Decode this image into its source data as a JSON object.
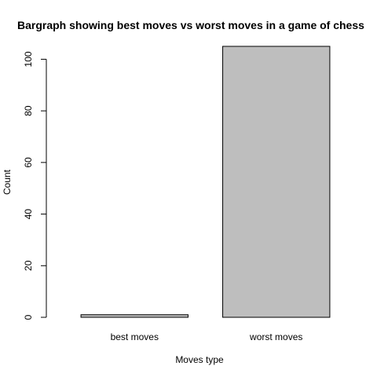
{
  "chart_data": {
    "type": "bar",
    "title": "Bargraph showing best moves vs worst moves in a game of chess",
    "xlabel": "Moves type",
    "ylabel": "Count",
    "categories": [
      "best moves",
      "worst moves"
    ],
    "values": [
      1,
      105
    ],
    "ylim": [
      0,
      105
    ],
    "yticks": [
      0,
      20,
      40,
      60,
      80,
      100
    ],
    "bar_color": "#bebebe",
    "grid": false,
    "legend": "none"
  }
}
